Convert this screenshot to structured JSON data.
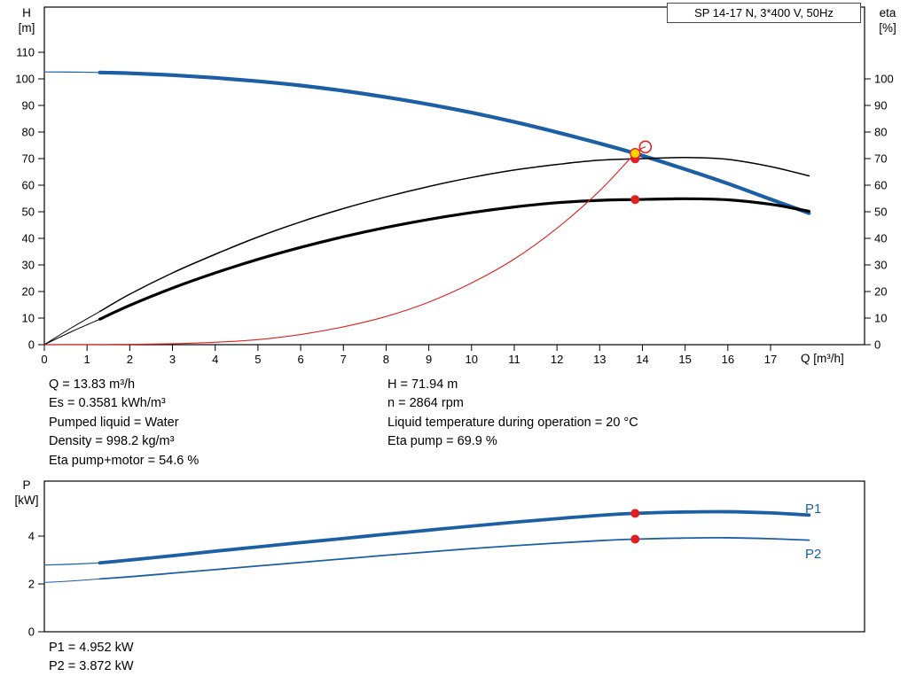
{
  "colors": {
    "blue": "#1d5fa5",
    "black": "#000000",
    "red": "#e02020",
    "yellow": "#ffd400",
    "frame": "#000000"
  },
  "results": {
    "left": [
      "Q = 13.83 m³/h",
      "Es = 0.3581 kWh/m³",
      "Pumped liquid = Water",
      "Density = 998.2 kg/m³",
      "Eta pump+motor = 54.6 %"
    ],
    "right": [
      "H = 71.94 m",
      "n = 2864 rpm",
      "Liquid temperature during operation = 20 °C",
      "Eta pump = 69.9 %"
    ]
  },
  "power_results": [
    "P1 = 4.952 kW",
    "P2 = 3.872 kW"
  ],
  "chart_data": [
    {
      "type": "line",
      "title": "SP 14-17 N, 3*400 V, 50Hz",
      "x_axis": {
        "label": "Q [m³/h]",
        "min": 0,
        "max": 19.2,
        "ticks": [
          0,
          1,
          2,
          3,
          4,
          5,
          6,
          7,
          8,
          9,
          10,
          11,
          12,
          13,
          14,
          15,
          16,
          17
        ]
      },
      "y_axis_left": {
        "label": "H [m]",
        "label_lines": [
          "H",
          "[m]"
        ],
        "min": 0,
        "max": 127,
        "ticks": [
          0,
          10,
          20,
          30,
          40,
          50,
          60,
          70,
          80,
          90,
          100,
          110
        ]
      },
      "y_axis_right": {
        "label": "eta [%]",
        "label_lines": [
          "eta",
          "[%]"
        ],
        "min": 0,
        "max": 127,
        "ticks": [
          0,
          10,
          20,
          30,
          40,
          50,
          60,
          70,
          80,
          90,
          100
        ]
      },
      "grid": false,
      "series": [
        {
          "name": "h-curve-leadin",
          "axis": "left",
          "color": "#1d5fa5",
          "width": 1.2,
          "points": [
            [
              0,
              102.6
            ],
            [
              0.7,
              102.55
            ],
            [
              1.3,
              102.4
            ]
          ]
        },
        {
          "name": "h-curve",
          "axis": "left",
          "color": "#1d5fa5",
          "width": 4.2,
          "points": [
            [
              1.3,
              102.4
            ],
            [
              2,
              102.1
            ],
            [
              3,
              101.4
            ],
            [
              4,
              100.4
            ],
            [
              5,
              99.1
            ],
            [
              6,
              97.5
            ],
            [
              7,
              95.5
            ],
            [
              8,
              93.1
            ],
            [
              9,
              90.4
            ],
            [
              10,
              87.3
            ],
            [
              11,
              83.8
            ],
            [
              12,
              79.9
            ],
            [
              13,
              75.7
            ],
            [
              13.83,
              71.94
            ],
            [
              15,
              66.0
            ],
            [
              16,
              60.6
            ],
            [
              17,
              54.7
            ],
            [
              17.9,
              49.5
            ]
          ]
        },
        {
          "name": "eta-pump-curve-leadin",
          "axis": "right",
          "color": "#000000",
          "width": 1,
          "points": [
            [
              0,
              0
            ],
            [
              0.65,
              6.5
            ],
            [
              1.3,
              12.5
            ]
          ]
        },
        {
          "name": "eta-pump-curve",
          "axis": "right",
          "color": "#000000",
          "width": 1.5,
          "points": [
            [
              1.3,
              12.5
            ],
            [
              2,
              19
            ],
            [
              3,
              27
            ],
            [
              4,
              34
            ],
            [
              5,
              40.5
            ],
            [
              6,
              46.2
            ],
            [
              7,
              51.2
            ],
            [
              8,
              55.6
            ],
            [
              9,
              59.5
            ],
            [
              10,
              62.9
            ],
            [
              11,
              65.7
            ],
            [
              12,
              67.8
            ],
            [
              13,
              69.4
            ],
            [
              13.83,
              69.9
            ],
            [
              15,
              70.4
            ],
            [
              16,
              69.7
            ],
            [
              17,
              67
            ],
            [
              17.9,
              63.5
            ]
          ]
        },
        {
          "name": "eta-pump-motor-curve-leadin",
          "axis": "right",
          "color": "#000000",
          "width": 1,
          "points": [
            [
              0,
              0
            ],
            [
              0.65,
              5
            ],
            [
              1.3,
              9.6
            ]
          ]
        },
        {
          "name": "eta-pump-motor-curve",
          "axis": "right",
          "color": "#000000",
          "width": 3.2,
          "points": [
            [
              1.3,
              9.6
            ],
            [
              2,
              14.8
            ],
            [
              3,
              21.3
            ],
            [
              4,
              27
            ],
            [
              5,
              32.1
            ],
            [
              6,
              36.6
            ],
            [
              7,
              40.6
            ],
            [
              8,
              44.1
            ],
            [
              9,
              47.1
            ],
            [
              10,
              49.7
            ],
            [
              11,
              51.8
            ],
            [
              12,
              53.4
            ],
            [
              13,
              54.3
            ],
            [
              13.83,
              54.6
            ],
            [
              15,
              54.9
            ],
            [
              16,
              54.5
            ],
            [
              17,
              52.8
            ],
            [
              17.9,
              50.2
            ]
          ]
        },
        {
          "name": "system-curve",
          "axis": "left",
          "color": "#e02020",
          "width": 1.1,
          "points": [
            [
              0,
              0
            ],
            [
              1,
              0.02
            ],
            [
              2,
              0.1
            ],
            [
              3,
              0.35
            ],
            [
              4,
              0.9
            ],
            [
              5,
              1.9
            ],
            [
              6,
              3.8
            ],
            [
              7,
              6.7
            ],
            [
              8,
              10.6
            ],
            [
              9,
              16
            ],
            [
              10,
              23.2
            ],
            [
              11,
              32.2
            ],
            [
              12,
              43.8
            ],
            [
              13,
              57.9
            ],
            [
              13.83,
              71.94
            ],
            [
              14.07,
              74.4
            ]
          ]
        }
      ],
      "markers": [
        {
          "name": "duty-point-eta-pump",
          "axis": "right",
          "x": 13.83,
          "y": 69.9,
          "r": 5,
          "fill": "#e02020",
          "stroke": "none",
          "sw": 0
        },
        {
          "name": "duty-point-qh",
          "axis": "left",
          "x": 13.83,
          "y": 71.94,
          "r": 5.5,
          "fill": "#ffd400",
          "stroke": "#e02020",
          "sw": 1.3
        },
        {
          "name": "requested-duty-point-open",
          "axis": "left",
          "x": 14.07,
          "y": 74.4,
          "r": 6.5,
          "fill": "none",
          "stroke": "#e02020",
          "sw": 1.6
        },
        {
          "name": "duty-point-eta-pump-motor",
          "axis": "right",
          "x": 13.83,
          "y": 54.6,
          "r": 5,
          "fill": "#e02020",
          "stroke": "none",
          "sw": 0
        }
      ]
    },
    {
      "type": "line",
      "title": "Power curves",
      "x_axis": {
        "label": "",
        "min": 0,
        "max": 19.2,
        "ticks": []
      },
      "y_axis_left": {
        "label": "P [kW]",
        "label_lines": [
          "P",
          "[kW]"
        ],
        "min": 0,
        "max": 6.3,
        "ticks": [
          0,
          2,
          4
        ]
      },
      "grid": false,
      "labels": {
        "p1": "P1",
        "p2": "P2"
      },
      "series": [
        {
          "name": "p1-curve-leadin",
          "axis": "left",
          "color": "#1d5fa5",
          "width": 1.2,
          "points": [
            [
              0,
              2.79
            ],
            [
              0.7,
              2.83
            ],
            [
              1.3,
              2.88
            ]
          ]
        },
        {
          "name": "p1-curve",
          "axis": "left",
          "color": "#1d5fa5",
          "width": 3.8,
          "points": [
            [
              1.3,
              2.88
            ],
            [
              2,
              3.0
            ],
            [
              3,
              3.18
            ],
            [
              4,
              3.37
            ],
            [
              5,
              3.55
            ],
            [
              6,
              3.73
            ],
            [
              7,
              3.9
            ],
            [
              8,
              4.08
            ],
            [
              9,
              4.25
            ],
            [
              10,
              4.42
            ],
            [
              11,
              4.58
            ],
            [
              12,
              4.73
            ],
            [
              13,
              4.87
            ],
            [
              13.83,
              4.952
            ],
            [
              15,
              5.01
            ],
            [
              16,
              5.02
            ],
            [
              17,
              4.97
            ],
            [
              17.9,
              4.88
            ]
          ]
        },
        {
          "name": "p2-curve-leadin",
          "axis": "left",
          "color": "#1d5fa5",
          "width": 1,
          "points": [
            [
              0,
              2.06
            ],
            [
              0.7,
              2.13
            ],
            [
              1.3,
              2.21
            ]
          ]
        },
        {
          "name": "p2-curve",
          "axis": "left",
          "color": "#1d5fa5",
          "width": 1.8,
          "points": [
            [
              1.3,
              2.21
            ],
            [
              2,
              2.3
            ],
            [
              3,
              2.45
            ],
            [
              4,
              2.6
            ],
            [
              5,
              2.75
            ],
            [
              6,
              2.9
            ],
            [
              7,
              3.05
            ],
            [
              8,
              3.2
            ],
            [
              9,
              3.34
            ],
            [
              10,
              3.48
            ],
            [
              11,
              3.6
            ],
            [
              12,
              3.71
            ],
            [
              13,
              3.81
            ],
            [
              13.83,
              3.872
            ],
            [
              15,
              3.92
            ],
            [
              16,
              3.93
            ],
            [
              17,
              3.89
            ],
            [
              17.9,
              3.83
            ]
          ]
        }
      ],
      "markers": [
        {
          "name": "duty-point-p1",
          "axis": "left",
          "x": 13.83,
          "y": 4.952,
          "r": 5,
          "fill": "#e02020",
          "stroke": "none",
          "sw": 0
        },
        {
          "name": "duty-point-p2",
          "axis": "left",
          "x": 13.83,
          "y": 3.872,
          "r": 5,
          "fill": "#e02020",
          "stroke": "none",
          "sw": 0
        }
      ]
    }
  ]
}
